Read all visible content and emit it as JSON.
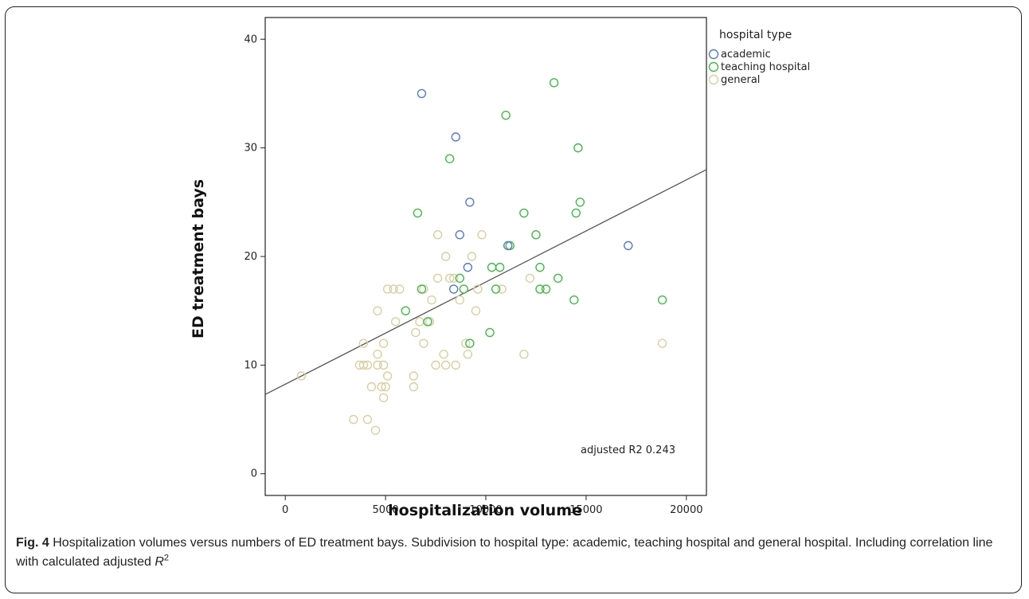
{
  "caption": {
    "label": "Fig. 4",
    "text": " Hospitalization volumes versus numbers of ED treatment bays. Subdivision to hospital type: academic, teaching hospital and general hospital. Including correlation line with calculated adjusted ",
    "r_symbol": "R",
    "r_sup": "2"
  },
  "chart_data": {
    "type": "scatter",
    "title": "",
    "xlabel": "hospitalization volume",
    "ylabel": "ED treatment bays",
    "xlim": [
      -1000,
      21000
    ],
    "ylim": [
      -2,
      42
    ],
    "xticks": [
      0,
      5000,
      10000,
      15000,
      20000
    ],
    "yticks": [
      0,
      10,
      20,
      30,
      40
    ],
    "grid": false,
    "legend": {
      "title": "hospital type",
      "position": "right"
    },
    "annotation": "adjusted R2 0.243",
    "regression_line": {
      "x": [
        -1000,
        21000
      ],
      "y": [
        7.3,
        28.0
      ]
    },
    "colors": {
      "academic": "#5b78c5",
      "teaching": "#43b84a",
      "general": "#d8cfa2",
      "line": "#555555"
    },
    "series": [
      {
        "name": "academic",
        "color": "#5b78c5",
        "points": [
          [
            6800,
            35
          ],
          [
            8500,
            31
          ],
          [
            9200,
            25
          ],
          [
            8700,
            22
          ],
          [
            11100,
            21
          ],
          [
            9100,
            19
          ],
          [
            8400,
            17
          ],
          [
            17100,
            21
          ]
        ]
      },
      {
        "name": "teaching hospital",
        "color": "#43b84a",
        "points": [
          [
            13400,
            36
          ],
          [
            11000,
            33
          ],
          [
            14600,
            30
          ],
          [
            8200,
            29
          ],
          [
            14700,
            25
          ],
          [
            6600,
            24
          ],
          [
            11900,
            24
          ],
          [
            14500,
            24
          ],
          [
            12500,
            22
          ],
          [
            11200,
            21
          ],
          [
            8700,
            18
          ],
          [
            10300,
            19
          ],
          [
            10700,
            19
          ],
          [
            12700,
            19
          ],
          [
            13600,
            18
          ],
          [
            6800,
            17
          ],
          [
            8900,
            17
          ],
          [
            10500,
            17
          ],
          [
            12700,
            17
          ],
          [
            13000,
            17
          ],
          [
            6000,
            15
          ],
          [
            14400,
            16
          ],
          [
            7100,
            14
          ],
          [
            10200,
            13
          ],
          [
            9200,
            12
          ],
          [
            18800,
            16
          ]
        ]
      },
      {
        "name": "general",
        "color": "#d8cfa2",
        "points": [
          [
            7600,
            22
          ],
          [
            9800,
            22
          ],
          [
            8000,
            20
          ],
          [
            9300,
            20
          ],
          [
            7600,
            18
          ],
          [
            8200,
            18
          ],
          [
            8700,
            16
          ],
          [
            12200,
            18
          ],
          [
            5100,
            17
          ],
          [
            5400,
            17
          ],
          [
            5700,
            17
          ],
          [
            6900,
            17
          ],
          [
            9600,
            17
          ],
          [
            10800,
            17
          ],
          [
            7300,
            16
          ],
          [
            8400,
            18
          ],
          [
            4600,
            15
          ],
          [
            5500,
            14
          ],
          [
            6700,
            14
          ],
          [
            7200,
            14
          ],
          [
            9500,
            15
          ],
          [
            3900,
            12
          ],
          [
            4900,
            12
          ],
          [
            6900,
            12
          ],
          [
            9100,
            11
          ],
          [
            11900,
            11
          ],
          [
            3700,
            10
          ],
          [
            4100,
            10
          ],
          [
            4600,
            10
          ],
          [
            4900,
            10
          ],
          [
            7500,
            10
          ],
          [
            8000,
            10
          ],
          [
            8500,
            10
          ],
          [
            9000,
            12
          ],
          [
            4600,
            11
          ],
          [
            5100,
            9
          ],
          [
            6400,
            9
          ],
          [
            7900,
            11
          ],
          [
            4300,
            8
          ],
          [
            4800,
            8
          ],
          [
            5000,
            8
          ],
          [
            6400,
            8
          ],
          [
            4900,
            7
          ],
          [
            3400,
            5
          ],
          [
            4100,
            5
          ],
          [
            4500,
            4
          ],
          [
            800,
            9
          ],
          [
            18800,
            12
          ],
          [
            3900,
            10
          ],
          [
            6500,
            13
          ]
        ]
      }
    ]
  }
}
